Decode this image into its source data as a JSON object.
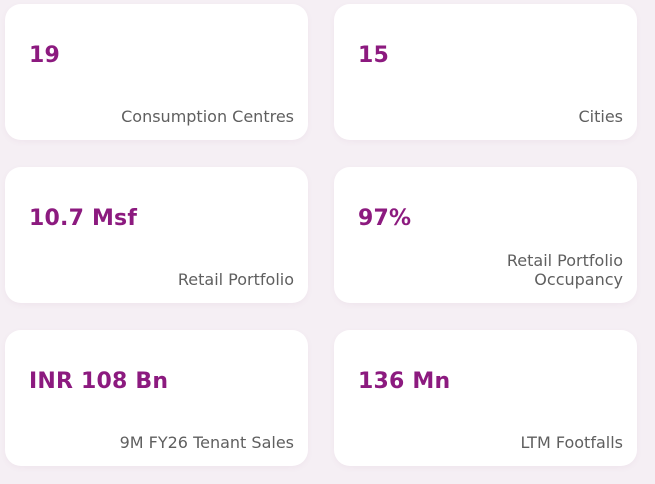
{
  "stats": [
    {
      "value": "19",
      "label": "Consumption Centres"
    },
    {
      "value": "15",
      "label": "Cities"
    },
    {
      "value": "10.7 Msf",
      "label": "Retail Portfolio"
    },
    {
      "value": "97%",
      "label": "Retail Portfolio Occupancy"
    },
    {
      "value": "INR 108 Bn",
      "label": "9M FY26 Tenant Sales"
    },
    {
      "value": "136 Mn",
      "label": "LTM Footfalls"
    }
  ],
  "colors": {
    "background": "#f5eff4",
    "card": "#ffffff",
    "value_text": "#8c1a7f",
    "label_text": "#5f5f5f"
  }
}
